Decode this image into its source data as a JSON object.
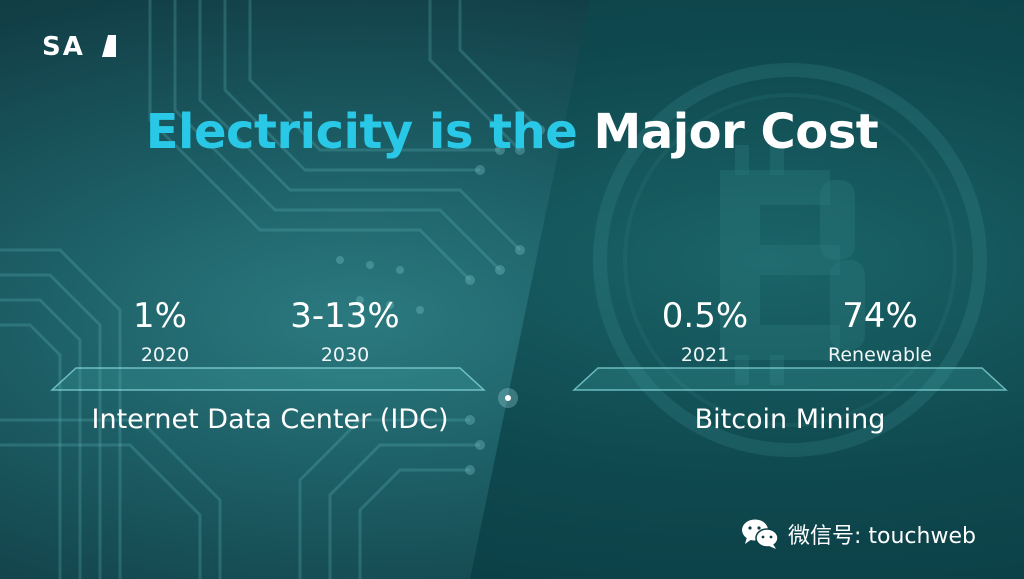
{
  "logo": {
    "text": "SAI"
  },
  "headline": {
    "part1": "Electricity is the",
    "part2": "Major Cost"
  },
  "left": {
    "stats": [
      {
        "value": "1%",
        "label": "2020"
      },
      {
        "value": "3-13%",
        "label": "2030"
      }
    ],
    "title": "Internet Data Center (IDC)"
  },
  "right": {
    "stats": [
      {
        "value": "0.5%",
        "label": "2021"
      },
      {
        "value": "74%",
        "label": "Renewable"
      }
    ],
    "title": "Bitcoin Mining"
  },
  "watermark": {
    "icon": "wechat-icon",
    "text": "微信号: touchweb"
  },
  "colors": {
    "accent": "#29c8e6",
    "background": "#0b3f47"
  }
}
